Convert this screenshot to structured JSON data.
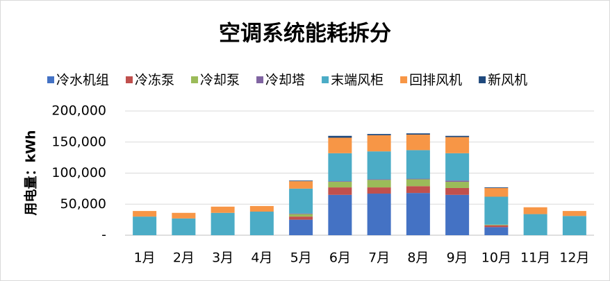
{
  "chart_data": {
    "type": "stacked-bar",
    "title": "空调系统能耗拆分",
    "y_label": "用电量：kWh",
    "categories": [
      "1月",
      "2月",
      "3月",
      "4月",
      "5月",
      "6月",
      "7月",
      "8月",
      "9月",
      "10月",
      "11月",
      "12月"
    ],
    "series": [
      {
        "name": "冷水机组",
        "color": "#4472c4",
        "values": [
          0,
          0,
          0,
          0,
          25000,
          65000,
          67000,
          68000,
          65000,
          13000,
          0,
          0
        ]
      },
      {
        "name": "冷冻泵",
        "color": "#c0504d",
        "values": [
          0,
          0,
          0,
          0,
          5000,
          12000,
          10000,
          11000,
          11000,
          3000,
          0,
          0
        ]
      },
      {
        "name": "冷却泵",
        "color": "#9bbb59",
        "values": [
          0,
          0,
          0,
          0,
          4000,
          9000,
          12000,
          11000,
          10000,
          1000,
          0,
          0
        ]
      },
      {
        "name": "冷却塔",
        "color": "#8064a2",
        "values": [
          0,
          0,
          0,
          0,
          1000,
          1000,
          1000,
          1000,
          2000,
          0,
          0,
          0
        ]
      },
      {
        "name": "末端风柜",
        "color": "#4bacc6",
        "values": [
          30000,
          27000,
          36000,
          38000,
          40000,
          45000,
          45000,
          46000,
          44000,
          45000,
          34000,
          31000
        ]
      },
      {
        "name": "回排风机",
        "color": "#f79646",
        "values": [
          9000,
          9000,
          10000,
          9000,
          12000,
          25000,
          26000,
          25000,
          26000,
          14000,
          11000,
          8000
        ]
      },
      {
        "name": "新风机",
        "color": "#1f497d",
        "values": [
          0,
          0,
          0,
          0,
          1000,
          3000,
          2000,
          2000,
          2000,
          1000,
          0,
          0
        ]
      }
    ],
    "ylim": [
      0,
      200000
    ],
    "yticks": [
      {
        "value": 0,
        "label": "-"
      },
      {
        "value": 50000,
        "label": "50,000"
      },
      {
        "value": 100000,
        "label": "100,000"
      },
      {
        "value": 150000,
        "label": "150,000"
      },
      {
        "value": 200000,
        "label": "200,000"
      }
    ],
    "grid": true,
    "legend": "top"
  }
}
